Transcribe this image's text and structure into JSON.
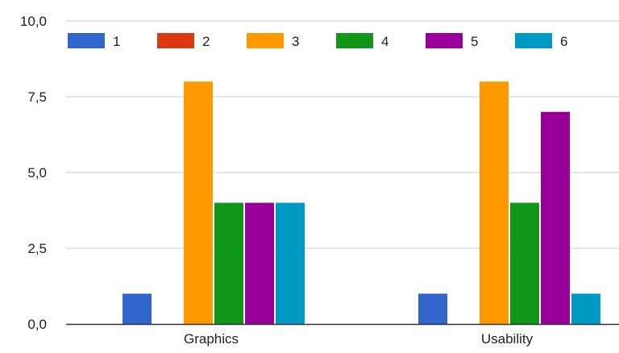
{
  "chart_data": {
    "type": "bar",
    "title": "",
    "xlabel": "",
    "ylabel": "",
    "categories": [
      "Graphics",
      "Usability"
    ],
    "ylim": [
      0,
      10
    ],
    "yticks": [
      "0,0",
      "2,5",
      "5,0",
      "7,5",
      "10,0"
    ],
    "grid": true,
    "legend_position": "top",
    "series": [
      {
        "name": "1",
        "color": "#3366cc",
        "values": [
          1,
          1
        ]
      },
      {
        "name": "2",
        "color": "#dc3912",
        "values": [
          0,
          0
        ]
      },
      {
        "name": "3",
        "color": "#ff9900",
        "values": [
          8,
          8
        ]
      },
      {
        "name": "4",
        "color": "#109618",
        "values": [
          4,
          4
        ]
      },
      {
        "name": "5",
        "color": "#990099",
        "values": [
          4,
          7
        ]
      },
      {
        "name": "6",
        "color": "#0099c6",
        "values": [
          4,
          1
        ]
      }
    ]
  }
}
